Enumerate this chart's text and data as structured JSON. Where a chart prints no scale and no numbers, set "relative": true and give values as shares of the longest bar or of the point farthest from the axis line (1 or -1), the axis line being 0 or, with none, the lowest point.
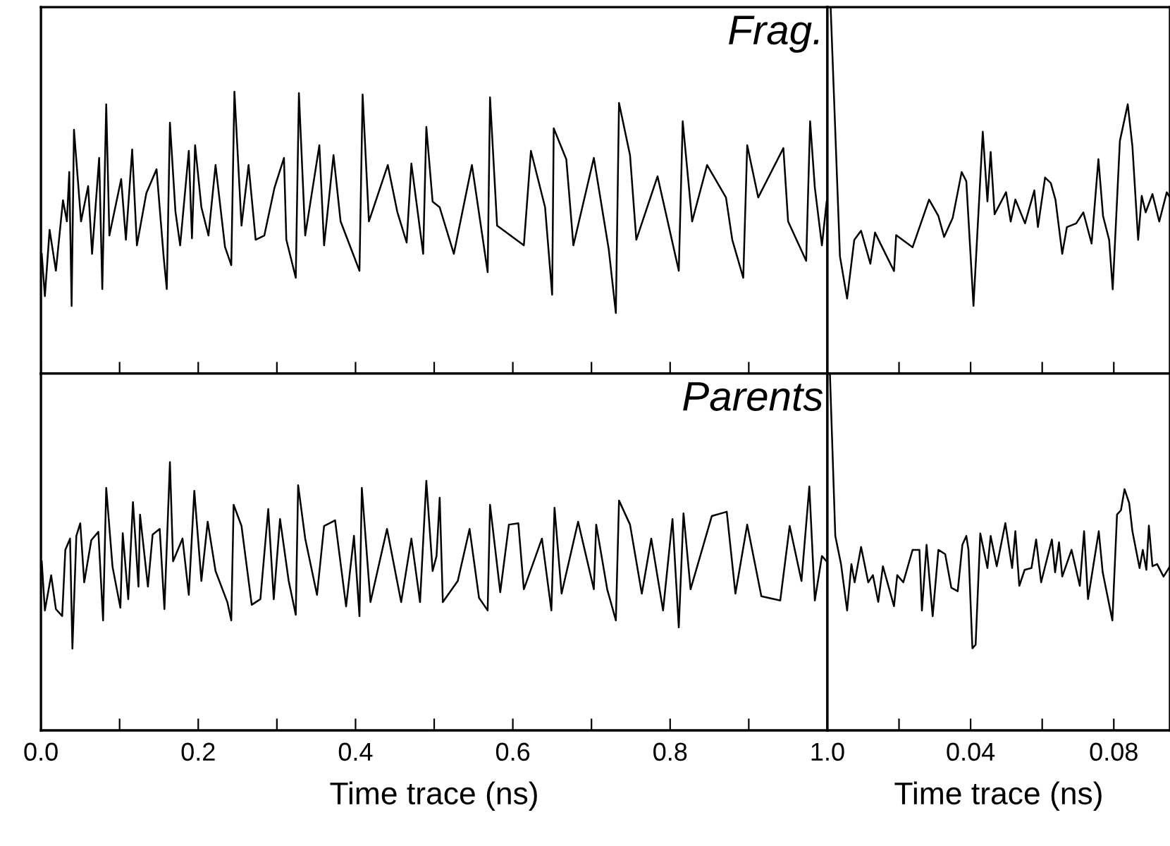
{
  "chart_data": [
    {
      "type": "line",
      "relative": true,
      "tick_labels": false,
      "annotations": [
        "Frag."
      ],
      "xlim": [
        0,
        1.0
      ],
      "xticks": [
        {
          "value": 0,
          "label": null
        },
        {
          "value": 0.1,
          "label": null
        },
        {
          "value": 0.2,
          "label": null
        },
        {
          "value": 0.3,
          "label": null
        },
        {
          "value": 0.4,
          "label": null
        },
        {
          "value": 0.5,
          "label": null
        },
        {
          "value": 0.6,
          "label": null
        },
        {
          "value": 0.7,
          "label": null
        },
        {
          "value": 0.8,
          "label": null
        },
        {
          "value": 0.9,
          "label": null
        },
        {
          "value": 1.0,
          "label": null
        }
      ],
      "series": [
        {
          "color": "#000000",
          "x": [
            0.001,
            0.005,
            0.011,
            0.019,
            0.028,
            0.033,
            0.036,
            0.039,
            0.042,
            0.051,
            0.06,
            0.065,
            0.074,
            0.078,
            0.083,
            0.087,
            0.102,
            0.108,
            0.116,
            0.122,
            0.134,
            0.147,
            0.156,
            0.16,
            0.164,
            0.171,
            0.177,
            0.188,
            0.192,
            0.196,
            0.204,
            0.213,
            0.222,
            0.234,
            0.242,
            0.246,
            0.255,
            0.264,
            0.273,
            0.284,
            0.297,
            0.309,
            0.312,
            0.324,
            0.328,
            0.336,
            0.354,
            0.36,
            0.372,
            0.381,
            0.405,
            0.409,
            0.417,
            0.441,
            0.453,
            0.465,
            0.471,
            0.486,
            0.49,
            0.498,
            0.507,
            0.525,
            0.548,
            0.568,
            0.571,
            0.58,
            0.614,
            0.623,
            0.641,
            0.65,
            0.652,
            0.668,
            0.677,
            0.703,
            0.722,
            0.731,
            0.735,
            0.749,
            0.757,
            0.784,
            0.811,
            0.816,
            0.828,
            0.847,
            0.871,
            0.879,
            0.893,
            0.898,
            0.912,
            0.944,
            0.95,
            0.973,
            0.978,
            0.984,
            0.993,
            0.999
          ],
          "values": [
            0.425,
            0.275,
            0.51,
            0.365,
            0.615,
            0.54,
            0.715,
            0.24,
            0.865,
            0.54,
            0.665,
            0.425,
            0.765,
            0.3,
            0.955,
            0.49,
            0.69,
            0.475,
            0.795,
            0.455,
            0.64,
            0.725,
            0.415,
            0.3,
            0.89,
            0.575,
            0.455,
            0.79,
            0.48,
            0.81,
            0.59,
            0.49,
            0.74,
            0.45,
            0.385,
            1.0,
            0.525,
            0.74,
            0.475,
            0.49,
            0.66,
            0.765,
            0.475,
            0.34,
            0.995,
            0.49,
            0.81,
            0.455,
            0.775,
            0.54,
            0.365,
            0.99,
            0.54,
            0.74,
            0.575,
            0.465,
            0.745,
            0.425,
            0.875,
            0.61,
            0.59,
            0.425,
            0.74,
            0.36,
            0.98,
            0.525,
            0.455,
            0.79,
            0.59,
            0.28,
            0.87,
            0.76,
            0.455,
            0.765,
            0.44,
            0.215,
            0.96,
            0.775,
            0.475,
            0.7,
            0.365,
            0.895,
            0.54,
            0.74,
            0.625,
            0.475,
            0.34,
            0.81,
            0.625,
            0.8,
            0.54,
            0.4,
            0.895,
            0.66,
            0.455,
            0.61
          ]
        }
      ]
    },
    {
      "type": "line",
      "relative": true,
      "tick_labels": false,
      "xlim": [
        0,
        0.0957
      ],
      "xticks": [
        {
          "value": 0.02,
          "label": null
        },
        {
          "value": 0.04,
          "label": null
        },
        {
          "value": 0.06,
          "label": null
        },
        {
          "value": 0.08,
          "label": null
        }
      ],
      "series": [
        {
          "color": "#000000",
          "x": [
            0.0009,
            0.0035,
            0.0055,
            0.0075,
            0.0094,
            0.012,
            0.0133,
            0.0153,
            0.0186,
            0.0192,
            0.0238,
            0.0284,
            0.031,
            0.0326,
            0.035,
            0.0375,
            0.0388,
            0.0408,
            0.0434,
            0.0447,
            0.0456,
            0.0467,
            0.0499,
            0.0512,
            0.0525,
            0.0552,
            0.0578,
            0.0588,
            0.0608,
            0.0624,
            0.0637,
            0.0656,
            0.0669,
            0.0695,
            0.0715,
            0.0738,
            0.0757,
            0.077,
            0.0787,
            0.0797,
            0.0817,
            0.0839,
            0.0852,
            0.0868,
            0.0878,
            0.0889,
            0.0908,
            0.0927,
            0.0948,
            0.0957
          ],
          "values": [
            1.0,
            0.32,
            0.205,
            0.365,
            0.39,
            0.3,
            0.385,
            0.345,
            0.28,
            0.378,
            0.345,
            0.475,
            0.43,
            0.373,
            0.425,
            0.55,
            0.525,
            0.185,
            0.66,
            0.47,
            0.605,
            0.435,
            0.495,
            0.415,
            0.475,
            0.41,
            0.5,
            0.4,
            0.535,
            0.52,
            0.475,
            0.327,
            0.4,
            0.41,
            0.44,
            0.355,
            0.585,
            0.43,
            0.365,
            0.23,
            0.635,
            0.735,
            0.62,
            0.365,
            0.485,
            0.44,
            0.49,
            0.415,
            0.495,
            0.48
          ]
        }
      ]
    },
    {
      "type": "line",
      "relative": true,
      "tick_labels": "x",
      "annotations": [
        "Parents"
      ],
      "xlabel": "Time trace (ns)",
      "xlim": [
        0,
        1.0
      ],
      "xticks": [
        {
          "value": 0,
          "label": "0.0"
        },
        {
          "value": 0.1,
          "label": null
        },
        {
          "value": 0.2,
          "label": "0.2"
        },
        {
          "value": 0.3,
          "label": null
        },
        {
          "value": 0.4,
          "label": "0.4"
        },
        {
          "value": 0.5,
          "label": null
        },
        {
          "value": 0.6,
          "label": "0.6"
        },
        {
          "value": 0.7,
          "label": null
        },
        {
          "value": 0.8,
          "label": "0.8"
        },
        {
          "value": 0.9,
          "label": null
        },
        {
          "value": 1.0,
          "label": "1.0"
        }
      ],
      "series": [
        {
          "color": "#000000",
          "x": [
            0.001,
            0.005,
            0.013,
            0.019,
            0.027,
            0.031,
            0.037,
            0.04,
            0.045,
            0.05,
            0.055,
            0.064,
            0.073,
            0.079,
            0.083,
            0.091,
            0.101,
            0.104,
            0.111,
            0.117,
            0.124,
            0.126,
            0.136,
            0.142,
            0.151,
            0.157,
            0.164,
            0.168,
            0.18,
            0.188,
            0.195,
            0.204,
            0.212,
            0.222,
            0.237,
            0.242,
            0.245,
            0.255,
            0.268,
            0.279,
            0.289,
            0.296,
            0.304,
            0.315,
            0.324,
            0.327,
            0.336,
            0.351,
            0.36,
            0.374,
            0.388,
            0.398,
            0.405,
            0.408,
            0.419,
            0.44,
            0.458,
            0.471,
            0.482,
            0.49,
            0.498,
            0.503,
            0.507,
            0.511,
            0.53,
            0.545,
            0.557,
            0.568,
            0.571,
            0.584,
            0.595,
            0.607,
            0.614,
            0.637,
            0.649,
            0.653,
            0.662,
            0.683,
            0.703,
            0.706,
            0.72,
            0.731,
            0.735,
            0.749,
            0.764,
            0.776,
            0.791,
            0.803,
            0.811,
            0.817,
            0.826,
            0.853,
            0.872,
            0.883,
            0.898,
            0.916,
            0.94,
            0.952,
            0.967,
            0.977,
            0.984,
            0.993,
            0.999
          ],
          "values": [
            0.63,
            0.447,
            0.578,
            0.452,
            0.426,
            0.673,
            0.715,
            0.305,
            0.725,
            0.772,
            0.552,
            0.709,
            0.74,
            0.41,
            0.904,
            0.61,
            0.457,
            0.735,
            0.489,
            0.851,
            0.536,
            0.804,
            0.536,
            0.73,
            0.751,
            0.452,
            1.0,
            0.63,
            0.715,
            0.505,
            0.893,
            0.557,
            0.778,
            0.594,
            0.478,
            0.41,
            0.841,
            0.762,
            0.468,
            0.489,
            0.825,
            0.489,
            0.788,
            0.557,
            0.431,
            0.914,
            0.715,
            0.505,
            0.762,
            0.783,
            0.462,
            0.725,
            0.426,
            0.904,
            0.478,
            0.751,
            0.478,
            0.715,
            0.478,
            0.93,
            0.594,
            0.65,
            0.867,
            0.478,
            0.557,
            0.751,
            0.494,
            0.447,
            0.841,
            0.515,
            0.767,
            0.772,
            0.526,
            0.715,
            0.447,
            0.83,
            0.51,
            0.778,
            0.526,
            0.767,
            0.526,
            0.41,
            0.857,
            0.767,
            0.51,
            0.715,
            0.447,
            0.788,
            0.384,
            0.809,
            0.526,
            0.799,
            0.815,
            0.51,
            0.767,
            0.5,
            0.484,
            0.762,
            0.557,
            0.909,
            0.484,
            0.65,
            0.63
          ]
        }
      ]
    },
    {
      "type": "line",
      "relative": true,
      "tick_labels": "x",
      "xlabel": "Time trace (ns)",
      "xlim": [
        0,
        0.0957
      ],
      "xticks": [
        {
          "value": 0.02,
          "label": null
        },
        {
          "value": 0.04,
          "label": "0.04"
        },
        {
          "value": 0.06,
          "label": null
        },
        {
          "value": 0.08,
          "label": "0.08"
        }
      ],
      "series": [
        {
          "color": "#000000",
          "x": [
            0.0007,
            0.0022,
            0.0038,
            0.0055,
            0.0067,
            0.0076,
            0.0094,
            0.0114,
            0.0127,
            0.0142,
            0.0155,
            0.0186,
            0.0195,
            0.0212,
            0.0238,
            0.0257,
            0.0264,
            0.0277,
            0.0294,
            0.031,
            0.0329,
            0.0346,
            0.0364,
            0.0377,
            0.0388,
            0.0394,
            0.0405,
            0.0414,
            0.0427,
            0.0447,
            0.0456,
            0.0473,
            0.0497,
            0.0516,
            0.0525,
            0.0536,
            0.0551,
            0.057,
            0.0583,
            0.0597,
            0.0627,
            0.0636,
            0.0647,
            0.0656,
            0.0682,
            0.0705,
            0.0717,
            0.0728,
            0.0758,
            0.0769,
            0.0796,
            0.0809,
            0.082,
            0.083,
            0.0843,
            0.0852,
            0.0872,
            0.0881,
            0.0891,
            0.0898,
            0.0908,
            0.0921,
            0.0939,
            0.0957
          ],
          "values": [
            1.0,
            0.545,
            0.466,
            0.336,
            0.466,
            0.415,
            0.514,
            0.415,
            0.435,
            0.36,
            0.46,
            0.348,
            0.435,
            0.415,
            0.506,
            0.506,
            0.336,
            0.52,
            0.32,
            0.506,
            0.494,
            0.4,
            0.39,
            0.52,
            0.545,
            0.506,
            0.23,
            0.24,
            0.552,
            0.455,
            0.545,
            0.46,
            0.581,
            0.455,
            0.558,
            0.405,
            0.45,
            0.455,
            0.535,
            0.415,
            0.535,
            0.443,
            0.527,
            0.431,
            0.506,
            0.405,
            0.558,
            0.368,
            0.558,
            0.443,
            0.308,
            0.605,
            0.617,
            0.676,
            0.637,
            0.558,
            0.455,
            0.506,
            0.45,
            0.574,
            0.46,
            0.466,
            0.431,
            0.46
          ]
        }
      ]
    }
  ]
}
